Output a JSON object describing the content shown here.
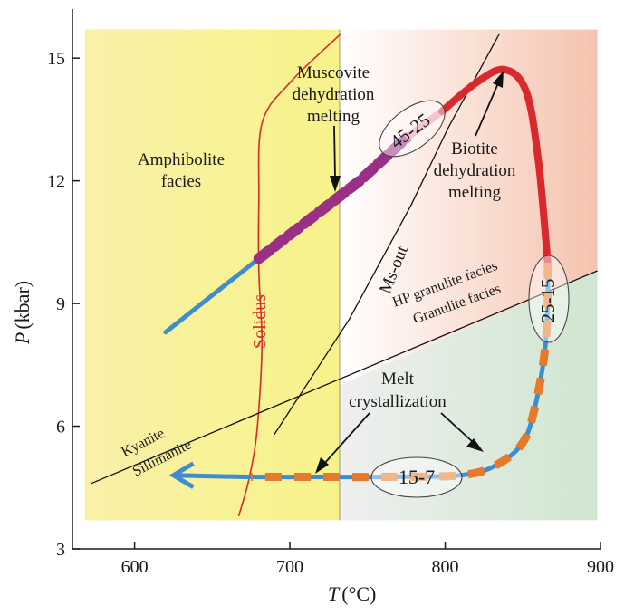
{
  "chart_data": {
    "type": "line",
    "title": "",
    "xlabel": "T",
    "xlabel_unit": "(°C)",
    "ylabel": "P",
    "ylabel_unit": "(kbar)",
    "xlim": [
      560,
      900
    ],
    "ylim": [
      3,
      16.2
    ],
    "x_ticks": [
      600,
      700,
      800,
      900
    ],
    "x_tick_labels": [
      "600",
      "700",
      "800",
      "900"
    ],
    "y_ticks": [
      3,
      6,
      9,
      12,
      15
    ],
    "y_tick_labels": [
      "3",
      "6",
      "9",
      "12",
      "15"
    ],
    "grid": false,
    "regions": [
      {
        "name": "amphibolite-zone",
        "label": "Amphibolite facies",
        "x": [
          568,
          732
        ],
        "y": [
          3.7,
          15.7
        ],
        "color": "#f7f2a0"
      },
      {
        "name": "hp-granulite-zone",
        "x": [
          732,
          898
        ],
        "y_bottom_line": [
          [
            732,
            7.0
          ],
          [
            898,
            9.8
          ]
        ],
        "y_top": 15.7,
        "color": "#f6c9b6"
      },
      {
        "name": "granulite-zone",
        "x": [
          732,
          898
        ],
        "y_top_line": [
          [
            732,
            7.0
          ],
          [
            898,
            9.8
          ]
        ],
        "y_bottom": 3.7,
        "color": "#cfe6cf"
      }
    ],
    "series": [
      {
        "name": "Solidus",
        "color": "#d62b27",
        "points": [
          [
            733,
            15.6
          ],
          [
            700,
            14.4
          ],
          [
            682,
            13.4
          ],
          [
            680,
            11.5
          ],
          [
            680,
            9.8
          ],
          [
            682,
            8.2
          ],
          [
            681,
            7.0
          ],
          [
            678,
            5.6
          ],
          [
            673,
            4.6
          ],
          [
            667,
            3.8
          ]
        ]
      },
      {
        "name": "Ms-out",
        "color": "#111111",
        "points": [
          [
            690,
            5.8
          ],
          [
            738,
            8.6
          ],
          [
            778,
            11.4
          ],
          [
            802,
            13.3
          ],
          [
            835,
            15.6
          ]
        ]
      },
      {
        "name": "HP granulite facies / Granulite facies",
        "color": "#111111",
        "points": [
          [
            732,
            7.0
          ],
          [
            898,
            9.8
          ]
        ]
      },
      {
        "name": "Kyanite / Sillimanite",
        "color": "#111111",
        "points": [
          [
            572,
            4.6
          ],
          [
            732,
            7.0
          ]
        ]
      },
      {
        "name": "Prograde path (blue)",
        "color": "#3d87c8",
        "points": [
          [
            620,
            8.3
          ],
          [
            680,
            10.1
          ]
        ]
      },
      {
        "name": "Muscovite dehydration melting (purple)",
        "color": "#9a2f86",
        "points": [
          [
            680,
            10.1
          ],
          [
            745,
            12.0
          ],
          [
            775,
            13.05
          ]
        ]
      },
      {
        "name": "Pink segment",
        "color": "#e69ab5",
        "points": [
          [
            775,
            13.05
          ],
          [
            798,
            13.7
          ]
        ]
      },
      {
        "name": "Biotite dehydration melting (red)",
        "color": "#d9292c",
        "points": [
          [
            798,
            13.7
          ],
          [
            820,
            14.4
          ],
          [
            838,
            14.72
          ],
          [
            852,
            14.2
          ],
          [
            860,
            12.5
          ],
          [
            866,
            10.0
          ]
        ]
      },
      {
        "name": "Retrograde path (blue-orange)",
        "color": "#3f8dcc",
        "dash_color": "#e57a2a",
        "points": [
          [
            866,
            10.0
          ],
          [
            866,
            9.0
          ],
          [
            864,
            7.8
          ],
          [
            858,
            6.5
          ],
          [
            850,
            5.6
          ],
          [
            833,
            5.05
          ],
          [
            810,
            4.8
          ],
          [
            760,
            4.76
          ],
          [
            720,
            4.76
          ],
          [
            675,
            4.76
          ],
          [
            625,
            4.8
          ]
        ]
      }
    ],
    "melt_fraction_labels": [
      {
        "text": "45-25",
        "position": "on muscovite/biotite transition"
      },
      {
        "text": "25-15",
        "position": "on retrograde near 866 °C"
      },
      {
        "text": "15-7",
        "position": "on isobaric cooling path"
      }
    ],
    "annotations": [
      {
        "text": "Amphibolite facies"
      },
      {
        "text": "Muscovite dehydration melting"
      },
      {
        "text": "Biotite dehydration melting"
      },
      {
        "text": "Ms-out"
      },
      {
        "text": "Solidus"
      },
      {
        "text": "HP granulite facies"
      },
      {
        "text": "Granulite facies"
      },
      {
        "text": "Kyanite"
      },
      {
        "text": "Sillimanite"
      },
      {
        "text": "Melt crystallization"
      }
    ]
  },
  "labels": {
    "x_axis_var": "T",
    "x_axis_unit": "(°C)",
    "y_axis_var": "P",
    "y_axis_unit": "(kbar)",
    "amphibolite_1": "Amphibolite",
    "amphibolite_2": "facies",
    "musc_1": "Muscovite",
    "musc_2": "dehydration",
    "musc_3": "melting",
    "biot_1": "Biotite",
    "biot_2": "dehydration",
    "biot_3": "melting",
    "ms_out": "Ms-out",
    "solidus": "Solidus",
    "hp_granulite": "HP granulite facies",
    "granulite": "Granulite facies",
    "kyanite": "Kyanite",
    "sillimanite": "Sillimanite",
    "melt_1": "Melt",
    "melt_2": "crystallization",
    "melt_a": "45-25",
    "melt_b": "25-15",
    "melt_c": "15-7"
  },
  "colors": {
    "amphibolite": "#f7f2a0",
    "hp_granulite_left": "#fbe6dc",
    "hp_granulite_right": "#f5c3ae",
    "granulite_left": "#eeeeee",
    "granulite_right": "#cfe6cf",
    "blue": "#3f8dcc",
    "orange": "#e57a2a",
    "purple": "#9a2f86",
    "pink": "#e69ab5",
    "red": "#d9292c",
    "solidus": "#d62b27",
    "axis": "#1a1a1a"
  }
}
